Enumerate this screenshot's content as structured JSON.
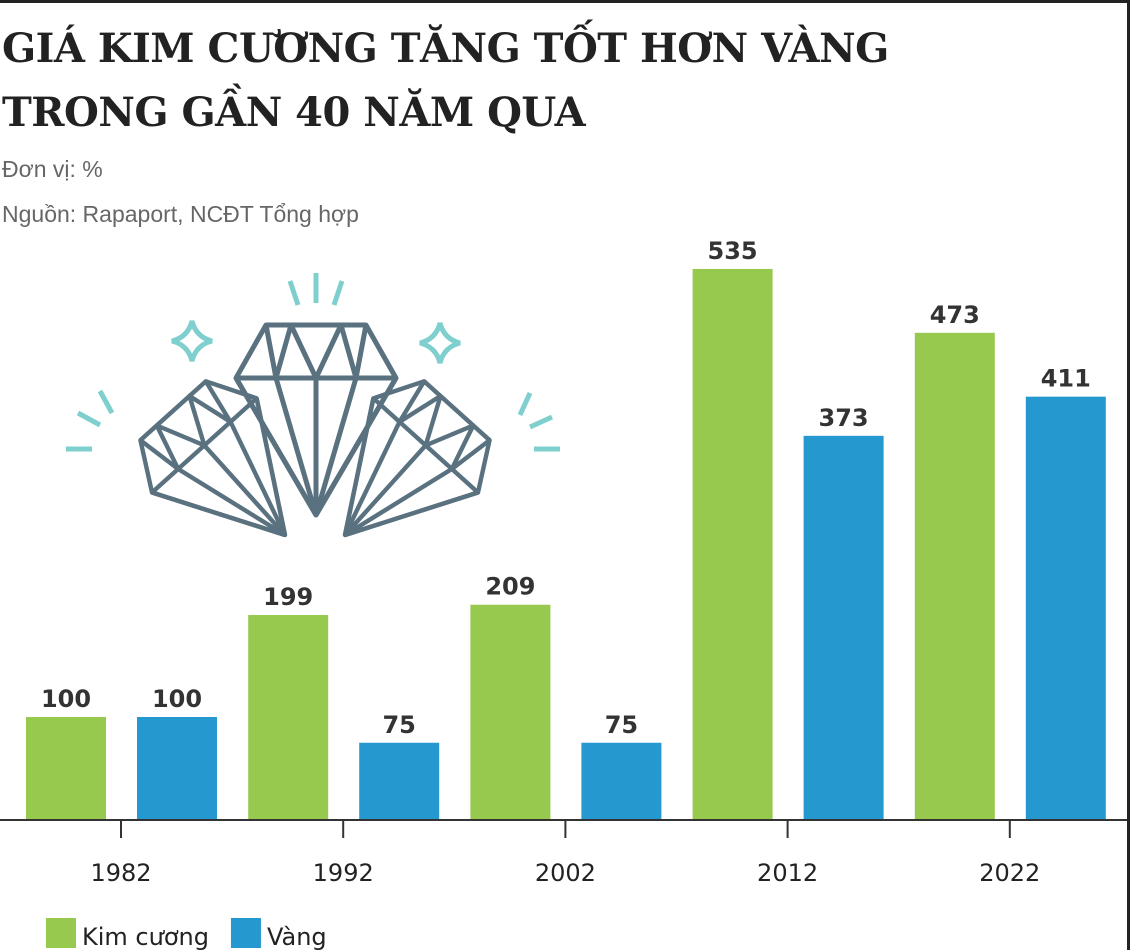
{
  "chart_data": {
    "type": "bar",
    "title": [
      "GIÁ KIM CƯƠNG TĂNG TỐT HƠN VÀNG",
      "TRONG GẦN 40 NĂM QUA"
    ],
    "subtitle": "Đơn vị: %",
    "source": "Nguồn: Rapaport, NCĐT Tổng hợp",
    "categories": [
      "1982",
      "1992",
      "2002",
      "2012",
      "2022"
    ],
    "series": [
      {
        "name": "Kim cương",
        "color": "#97c94f",
        "values": [
          100,
          199,
          209,
          535,
          473
        ]
      },
      {
        "name": "Vàng",
        "color": "#2599cf",
        "values": [
          100,
          75,
          75,
          373,
          411
        ]
      }
    ],
    "legend": "bottom-left"
  }
}
